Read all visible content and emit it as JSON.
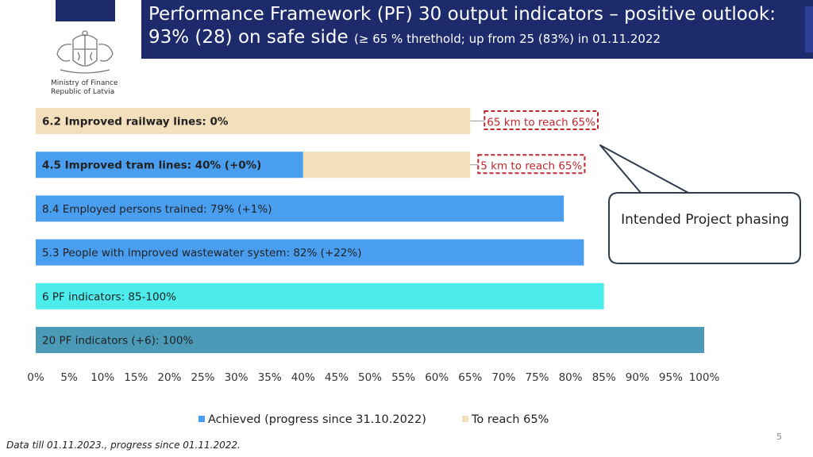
{
  "header": {
    "title_line1": "Performance Framework (PF) 30 output indicators – positive outlook:",
    "title_line2_main": "93% (28) on safe side",
    "title_line2_sub": "(≥ 65 % threthold; up from 25 (83%) in 01.11.2022"
  },
  "logo": {
    "ministry_line1": "Ministry of Finance",
    "ministry_line2": "Republic of Latvia"
  },
  "chart_data": {
    "type": "bar",
    "orientation": "horizontal",
    "stacked": true,
    "categories": [
      "6.2 Improved railway lines: 0%",
      "4.5 Improved tram lines: 40% (+0%)",
      "8.4 Employed persons trained: 79% (+1%)",
      "5.3 People with improved wastewater system: 82% (+22%)",
      "6 PF indicators: 85-100%",
      "20 PF indicators (+6): 100%"
    ],
    "bold_categories": [
      true,
      true,
      false,
      false,
      false,
      false
    ],
    "series": [
      {
        "name": "Achieved (progress since 31.10.2022)",
        "values": [
          0,
          40,
          79,
          82,
          85,
          100
        ]
      },
      {
        "name": "To reach 65%",
        "values": [
          65,
          25,
          0,
          0,
          0,
          0
        ]
      }
    ],
    "bar_colors": [
      "#4a9ef0",
      "#4a9ef0",
      "#4a9ef0",
      "#4a9ef0",
      "#4decec",
      "#4a9ab8"
    ],
    "series_colors": [
      "#4a9ef0",
      "#f4dfbd"
    ],
    "annotations": [
      {
        "category_index": 0,
        "text": "65 km to reach 65%"
      },
      {
        "category_index": 1,
        "text": "5 km to reach 65%"
      }
    ],
    "xlim": [
      0,
      100
    ],
    "x_ticks": [
      "0%",
      "5%",
      "10%",
      "15%",
      "20%",
      "25%",
      "30%",
      "35%",
      "40%",
      "45%",
      "50%",
      "55%",
      "60%",
      "65%",
      "70%",
      "75%",
      "80%",
      "85%",
      "90%",
      "95%",
      "100%"
    ],
    "legend_position": "bottom",
    "annotation_color": "#c0272d"
  },
  "callout": {
    "text": "Intended Project phasing"
  },
  "footer": {
    "note": "Data till 01.11.2023., progress since 01.11.2022."
  },
  "page": {
    "number": "5"
  }
}
